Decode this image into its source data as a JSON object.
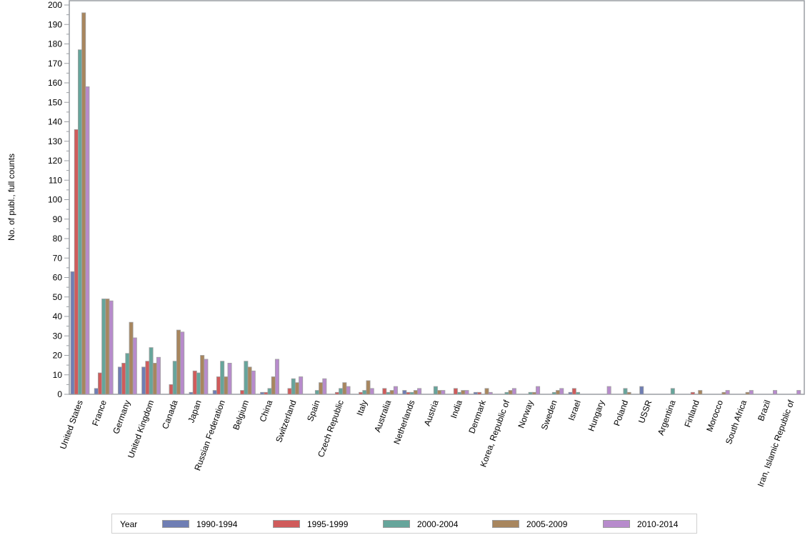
{
  "chart_data": {
    "type": "bar",
    "title": "",
    "xlabel": "",
    "ylabel": "No. of publ., full counts",
    "ylim": [
      0,
      200
    ],
    "yticks": [
      0,
      10,
      20,
      30,
      40,
      50,
      60,
      70,
      80,
      90,
      100,
      110,
      120,
      130,
      140,
      150,
      160,
      170,
      180,
      190,
      200
    ],
    "grid": false,
    "legend_position": "bottom",
    "legend_title": "Year",
    "categories": [
      "United States",
      "France",
      "Germany",
      "United Kingdom",
      "Canada",
      "Japan",
      "Russian Federation",
      "Belgium",
      "China",
      "Switzerland",
      "Spain",
      "Czech Republic",
      "Italy",
      "Australia",
      "Netherlands",
      "Austria",
      "India",
      "Denmark",
      "Korea, Republic of",
      "Norway",
      "Sweden",
      "Israel",
      "Hungary",
      "Poland",
      "USSR",
      "Argentina",
      "Finland",
      "Morocco",
      "South Africa",
      "Brazil",
      "Iran, Islamic Republic of"
    ],
    "series": [
      {
        "name": "1990-1994",
        "color": "#6f7eb4",
        "values": [
          63,
          3,
          14,
          14,
          0,
          1,
          2,
          0,
          1,
          0,
          0,
          0,
          0,
          0,
          2,
          0,
          0,
          1,
          0,
          0,
          0,
          1,
          0,
          0,
          4,
          0,
          0,
          0,
          0,
          0,
          0
        ]
      },
      {
        "name": "1995-1999",
        "color": "#d05b5b",
        "values": [
          136,
          11,
          16,
          17,
          5,
          12,
          9,
          2,
          1,
          3,
          0,
          1,
          1,
          3,
          1,
          0,
          3,
          1,
          0,
          0,
          0,
          3,
          0,
          0,
          0,
          0,
          1,
          0,
          0,
          0,
          0
        ]
      },
      {
        "name": "2000-2004",
        "color": "#66a59b",
        "values": [
          177,
          49,
          21,
          24,
          17,
          11,
          17,
          17,
          3,
          8,
          2,
          3,
          2,
          1,
          1,
          4,
          1,
          0,
          1,
          1,
          1,
          1,
          0,
          3,
          0,
          3,
          0,
          0,
          0,
          0,
          0
        ]
      },
      {
        "name": "2005-2009",
        "color": "#a8865e",
        "values": [
          196,
          49,
          37,
          16,
          33,
          20,
          9,
          14,
          9,
          6,
          6,
          6,
          7,
          2,
          2,
          2,
          2,
          3,
          2,
          1,
          2,
          0,
          0,
          1,
          0,
          0,
          2,
          1,
          1,
          0,
          0
        ]
      },
      {
        "name": "2010-2014",
        "color": "#b78bcc",
        "values": [
          158,
          48,
          29,
          19,
          32,
          18,
          16,
          12,
          18,
          9,
          8,
          4,
          3,
          4,
          3,
          2,
          2,
          1,
          3,
          4,
          3,
          0,
          4,
          0,
          0,
          0,
          0,
          2,
          2,
          2,
          2
        ]
      }
    ]
  },
  "axis_colors": {
    "axis": "#9a9ea3",
    "bar_border": "#a0a0a0",
    "text": "#000000"
  }
}
